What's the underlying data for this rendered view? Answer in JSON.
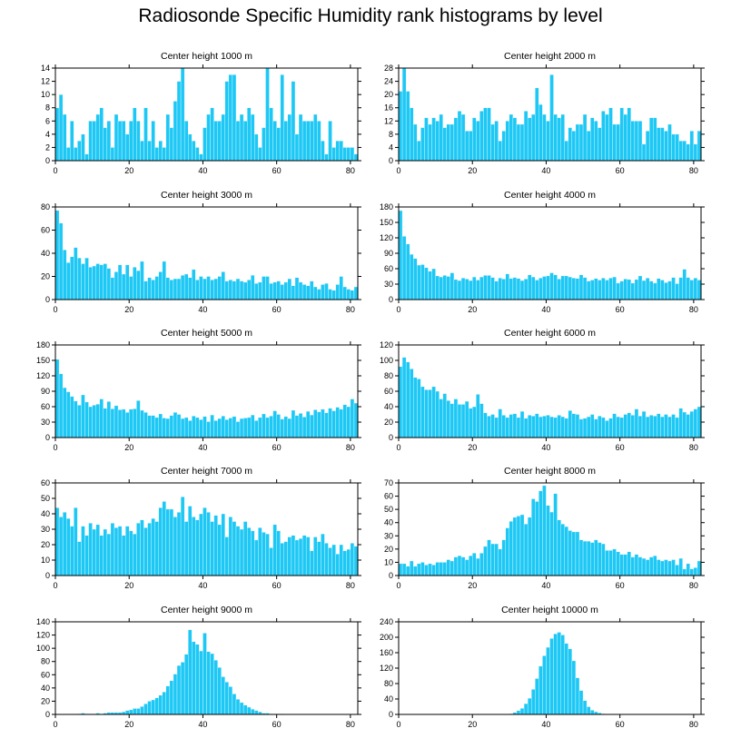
{
  "page": {
    "title": "Radiosonde Specific Humidity rank histograms by level"
  },
  "chart_data": [
    {
      "type": "bar",
      "title": "Center height 1000 m",
      "xlim": [
        0,
        82
      ],
      "ylim": [
        0,
        14
      ],
      "yticks": [
        0,
        2,
        4,
        6,
        8,
        10,
        12,
        14
      ],
      "xticks": [
        0,
        20,
        40,
        60,
        80
      ],
      "values": [
        8,
        10,
        7,
        2,
        6,
        2,
        3,
        4,
        1,
        6,
        6,
        7,
        8,
        5,
        6,
        2,
        7,
        6,
        6,
        4,
        6,
        8,
        6,
        3,
        8,
        3,
        6,
        2,
        3,
        2,
        7,
        5,
        9,
        12,
        14,
        6,
        4,
        3,
        2,
        1,
        5,
        7,
        8,
        6,
        6,
        7,
        12,
        13,
        13,
        6,
        7,
        6,
        8,
        7,
        4,
        2,
        5,
        14,
        8,
        6,
        5,
        13,
        6,
        7,
        12,
        4,
        7,
        6,
        6,
        6,
        7,
        6,
        3,
        1,
        6,
        2,
        3,
        3,
        2,
        2,
        2,
        1
      ]
    },
    {
      "type": "bar",
      "title": "Center height 2000 m",
      "xlim": [
        0,
        82
      ],
      "ylim": [
        0,
        28
      ],
      "yticks": [
        0,
        4,
        8,
        12,
        16,
        20,
        24,
        28
      ],
      "xticks": [
        0,
        20,
        40,
        60,
        80
      ],
      "values": [
        21,
        28,
        21,
        16,
        11,
        6,
        10,
        13,
        11,
        13,
        12,
        14,
        10,
        11,
        11,
        13,
        15,
        14,
        9,
        9,
        13,
        12,
        15,
        16,
        16,
        11,
        12,
        6,
        9,
        12,
        14,
        13,
        11,
        11,
        15,
        13,
        14,
        22,
        17,
        14,
        12,
        26,
        14,
        13,
        14,
        6,
        10,
        9,
        11,
        11,
        14,
        9,
        13,
        12,
        10,
        15,
        14,
        16,
        11,
        11,
        16,
        14,
        16,
        12,
        12,
        12,
        5,
        9,
        13,
        13,
        10,
        10,
        9,
        11,
        8,
        8,
        6,
        6,
        5,
        9,
        5,
        9
      ]
    },
    {
      "type": "bar",
      "title": "Center height 3000 m",
      "xlim": [
        0,
        82
      ],
      "ylim": [
        0,
        80
      ],
      "yticks": [
        0,
        20,
        40,
        60,
        80
      ],
      "xticks": [
        0,
        20,
        40,
        60,
        80
      ],
      "values": [
        77,
        66,
        43,
        32,
        37,
        45,
        36,
        31,
        36,
        28,
        29,
        31,
        30,
        31,
        27,
        19,
        24,
        30,
        22,
        30,
        20,
        28,
        25,
        33,
        16,
        19,
        17,
        20,
        24,
        33,
        19,
        17,
        18,
        18,
        21,
        22,
        19,
        26,
        17,
        20,
        18,
        20,
        17,
        18,
        20,
        24,
        16,
        17,
        16,
        18,
        16,
        15,
        17,
        21,
        14,
        15,
        20,
        20,
        14,
        15,
        16,
        13,
        15,
        18,
        12,
        19,
        15,
        13,
        12,
        16,
        11,
        9,
        13,
        14,
        9,
        8,
        13,
        20,
        11,
        9,
        8,
        11
      ]
    },
    {
      "type": "bar",
      "title": "Center height 4000 m",
      "xlim": [
        0,
        82
      ],
      "ylim": [
        0,
        180
      ],
      "yticks": [
        0,
        30,
        60,
        90,
        120,
        150,
        180
      ],
      "xticks": [
        0,
        20,
        40,
        60,
        80
      ],
      "values": [
        173,
        123,
        108,
        88,
        80,
        67,
        68,
        62,
        55,
        60,
        46,
        44,
        47,
        45,
        52,
        39,
        37,
        42,
        40,
        37,
        44,
        38,
        44,
        47,
        47,
        43,
        36,
        42,
        40,
        50,
        41,
        43,
        41,
        37,
        40,
        48,
        44,
        38,
        42,
        45,
        46,
        52,
        48,
        40,
        46,
        46,
        44,
        42,
        41,
        48,
        43,
        36,
        38,
        41,
        38,
        42,
        38,
        42,
        44,
        32,
        36,
        40,
        39,
        32,
        39,
        46,
        37,
        42,
        36,
        32,
        41,
        38,
        33,
        36,
        43,
        31,
        43,
        59,
        43,
        38,
        42,
        38
      ]
    },
    {
      "type": "bar",
      "title": "Center height 5000 m",
      "xlim": [
        0,
        82
      ],
      "ylim": [
        0,
        180
      ],
      "yticks": [
        0,
        30,
        60,
        90,
        120,
        150,
        180
      ],
      "xticks": [
        0,
        20,
        40,
        60,
        80
      ],
      "values": [
        152,
        124,
        97,
        89,
        80,
        71,
        63,
        83,
        69,
        60,
        63,
        65,
        75,
        57,
        70,
        56,
        62,
        54,
        55,
        49,
        55,
        56,
        72,
        53,
        49,
        43,
        43,
        39,
        46,
        38,
        37,
        43,
        49,
        45,
        37,
        39,
        33,
        42,
        39,
        35,
        41,
        31,
        44,
        33,
        37,
        42,
        35,
        38,
        41,
        31,
        37,
        38,
        39,
        44,
        33,
        39,
        46,
        39,
        42,
        52,
        45,
        36,
        41,
        37,
        53,
        43,
        47,
        40,
        51,
        44,
        54,
        50,
        55,
        48,
        57,
        52,
        59,
        55,
        64,
        60,
        75,
        67
      ]
    },
    {
      "type": "bar",
      "title": "Center height 6000 m",
      "xlim": [
        0,
        82
      ],
      "ylim": [
        0,
        120
      ],
      "yticks": [
        0,
        20,
        40,
        60,
        80,
        100,
        120
      ],
      "xticks": [
        0,
        20,
        40,
        60,
        80
      ],
      "values": [
        92,
        104,
        98,
        89,
        78,
        76,
        66,
        62,
        62,
        66,
        60,
        50,
        57,
        48,
        44,
        50,
        43,
        43,
        47,
        38,
        40,
        56,
        44,
        32,
        28,
        30,
        26,
        37,
        29,
        26,
        30,
        31,
        26,
        34,
        25,
        29,
        28,
        31,
        27,
        28,
        29,
        27,
        26,
        29,
        27,
        25,
        35,
        31,
        30,
        24,
        25,
        27,
        30,
        24,
        28,
        26,
        22,
        25,
        31,
        27,
        26,
        30,
        32,
        29,
        37,
        28,
        34,
        27,
        29,
        28,
        31,
        27,
        30,
        27,
        30,
        26,
        38,
        33,
        30,
        34,
        37,
        40
      ]
    },
    {
      "type": "bar",
      "title": "Center height 7000 m",
      "xlim": [
        0,
        82
      ],
      "ylim": [
        0,
        60
      ],
      "yticks": [
        0,
        10,
        20,
        30,
        40,
        50,
        60
      ],
      "xticks": [
        0,
        20,
        40,
        60,
        80
      ],
      "values": [
        44,
        38,
        41,
        37,
        32,
        44,
        22,
        32,
        26,
        34,
        30,
        33,
        26,
        30,
        27,
        34,
        31,
        32,
        26,
        32,
        29,
        27,
        34,
        36,
        31,
        34,
        37,
        35,
        44,
        48,
        43,
        43,
        38,
        41,
        51,
        35,
        45,
        38,
        36,
        40,
        44,
        41,
        35,
        39,
        33,
        40,
        25,
        38,
        35,
        32,
        30,
        35,
        31,
        29,
        23,
        31,
        28,
        27,
        18,
        33,
        29,
        21,
        22,
        25,
        26,
        23,
        24,
        26,
        25,
        16,
        25,
        22,
        27,
        21,
        18,
        20,
        14,
        20,
        16,
        17,
        21,
        19
      ]
    },
    {
      "type": "bar",
      "title": "Center height 8000 m",
      "xlim": [
        0,
        82
      ],
      "ylim": [
        0,
        70
      ],
      "yticks": [
        0,
        10,
        20,
        30,
        40,
        50,
        60,
        70
      ],
      "xticks": [
        0,
        20,
        40,
        60,
        80
      ],
      "values": [
        9,
        9,
        7,
        11,
        7,
        9,
        10,
        8,
        9,
        8,
        10,
        10,
        10,
        12,
        11,
        14,
        15,
        14,
        12,
        15,
        17,
        13,
        17,
        22,
        27,
        24,
        24,
        20,
        27,
        36,
        41,
        44,
        45,
        46,
        39,
        44,
        58,
        56,
        64,
        68,
        53,
        48,
        62,
        42,
        39,
        37,
        34,
        33,
        33,
        27,
        26,
        26,
        25,
        27,
        25,
        24,
        19,
        19,
        20,
        18,
        16,
        16,
        18,
        14,
        16,
        14,
        13,
        12,
        14,
        15,
        12,
        11,
        12,
        11,
        12,
        8,
        13,
        5,
        9,
        5,
        6,
        11
      ]
    },
    {
      "type": "bar",
      "title": "Center height 9000 m",
      "xlim": [
        0,
        82
      ],
      "ylim": [
        0,
        140
      ],
      "yticks": [
        0,
        20,
        40,
        60,
        80,
        100,
        120,
        140
      ],
      "xticks": [
        0,
        20,
        40,
        60,
        80
      ],
      "values": [
        0,
        0,
        0,
        0,
        0,
        0,
        1,
        2,
        1,
        1,
        1,
        2,
        1,
        2,
        3,
        3,
        3,
        3,
        4,
        6,
        7,
        9,
        9,
        12,
        16,
        20,
        22,
        25,
        29,
        34,
        43,
        51,
        61,
        74,
        79,
        91,
        128,
        110,
        106,
        96,
        123,
        95,
        92,
        82,
        71,
        57,
        49,
        42,
        31,
        23,
        18,
        14,
        11,
        8,
        6,
        4,
        2,
        2,
        1,
        1,
        1,
        1,
        0,
        0,
        0,
        0,
        0,
        0,
        0,
        0,
        0,
        0,
        0,
        0,
        0,
        0,
        0,
        0,
        0,
        0,
        0,
        0
      ]
    },
    {
      "type": "bar",
      "title": "Center height 10000 m",
      "xlim": [
        0,
        82
      ],
      "ylim": [
        0,
        240
      ],
      "yticks": [
        0,
        40,
        80,
        120,
        160,
        200,
        240
      ],
      "xticks": [
        0,
        20,
        40,
        60,
        80
      ],
      "values": [
        0,
        0,
        0,
        0,
        0,
        0,
        0,
        0,
        0,
        0,
        0,
        0,
        0,
        0,
        0,
        0,
        0,
        0,
        0,
        0,
        0,
        0,
        0,
        0,
        0,
        0,
        0,
        0,
        0,
        1,
        2,
        5,
        10,
        16,
        28,
        42,
        65,
        93,
        125,
        152,
        174,
        197,
        209,
        213,
        206,
        184,
        170,
        139,
        95,
        62,
        36,
        20,
        11,
        7,
        4,
        2,
        1,
        1,
        1,
        0,
        0,
        0,
        0,
        0,
        0,
        0,
        0,
        0,
        0,
        0,
        0,
        0,
        0,
        0,
        0,
        0,
        0,
        0,
        0,
        0,
        0,
        0
      ]
    }
  ]
}
